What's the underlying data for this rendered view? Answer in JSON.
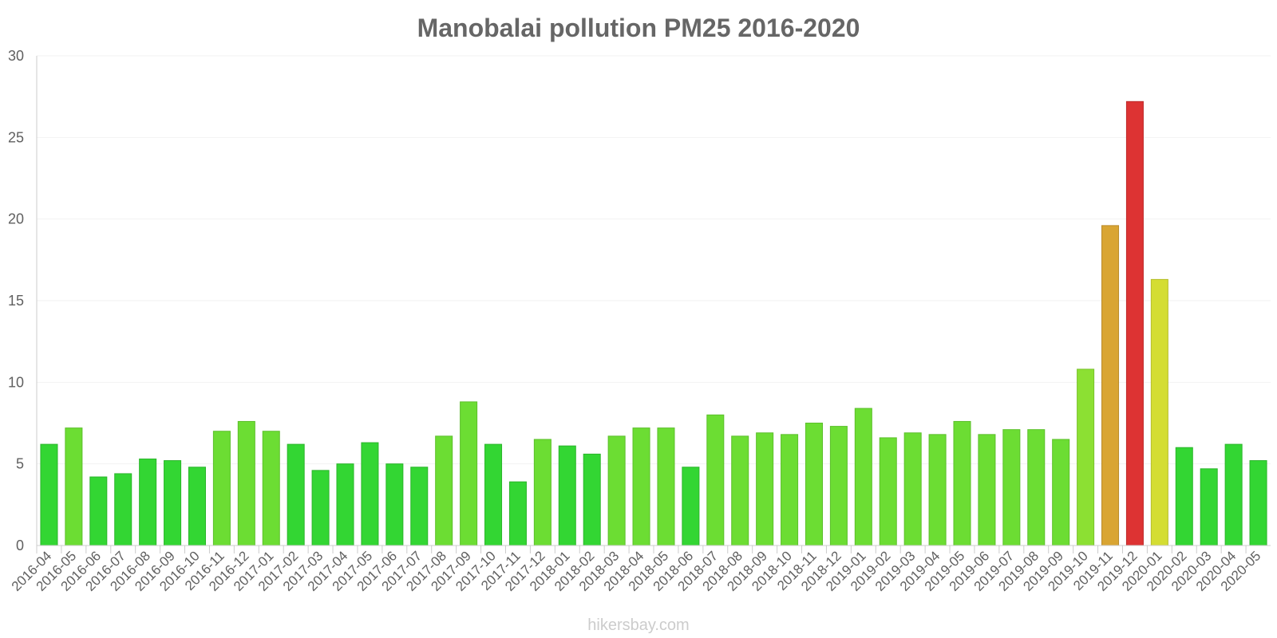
{
  "chart_data": {
    "type": "bar",
    "title": "Manobalai pollution PM25 2016-2020",
    "xlabel": "",
    "ylabel": "",
    "ylim": [
      0,
      30
    ],
    "yticks": [
      "0",
      "5",
      "10",
      "15",
      "20",
      "25",
      "30"
    ],
    "grid": true,
    "legend": "none",
    "categories": [
      "2016-04",
      "2016-05",
      "2016-06",
      "2016-07",
      "2016-08",
      "2016-09",
      "2016-10",
      "2016-11",
      "2016-12",
      "2017-01",
      "2017-02",
      "2017-03",
      "2017-04",
      "2017-05",
      "2017-06",
      "2017-07",
      "2017-08",
      "2017-09",
      "2017-10",
      "2017-11",
      "2017-12",
      "2018-01",
      "2018-02",
      "2018-03",
      "2018-04",
      "2018-05",
      "2018-06",
      "2018-07",
      "2018-08",
      "2018-09",
      "2018-10",
      "2018-11",
      "2018-12",
      "2019-01",
      "2019-02",
      "2019-03",
      "2019-04",
      "2019-05",
      "2019-06",
      "2019-07",
      "2019-08",
      "2019-09",
      "2019-10",
      "2019-11",
      "2019-12",
      "2020-01",
      "2020-02",
      "2020-03",
      "2020-04",
      "2020-05"
    ],
    "values": [
      6.2,
      7.2,
      4.2,
      4.4,
      5.3,
      5.2,
      4.8,
      7.0,
      7.6,
      7.0,
      6.2,
      4.6,
      5.0,
      6.3,
      5.0,
      4.8,
      6.7,
      8.8,
      6.2,
      3.9,
      6.5,
      6.1,
      5.6,
      6.7,
      7.2,
      7.2,
      4.8,
      8.0,
      6.7,
      6.9,
      6.8,
      7.5,
      7.3,
      8.4,
      6.6,
      6.9,
      6.8,
      7.6,
      6.8,
      7.1,
      7.1,
      6.5,
      10.8,
      19.6,
      27.2,
      16.3,
      6.0,
      4.7,
      6.2,
      5.2
    ],
    "colors": {
      "good": "#33d633",
      "good_stroke": "#2bb52b",
      "moderate": "#6cdd33",
      "moderate_stroke": "#5cbf2b",
      "elevated": "#8ce033",
      "elevated_stroke": "#78c02b",
      "unhealthy_sensitive": "#d4dd33",
      "unhealthy_sensitive_stroke": "#b5bd2b",
      "unhealthy": "#d9a533",
      "unhealthy_stroke": "#b98c2b",
      "very_unhealthy": "#dd3333",
      "very_unhealthy_stroke": "#bd2b2b"
    }
  },
  "credit": "hikersbay.com"
}
